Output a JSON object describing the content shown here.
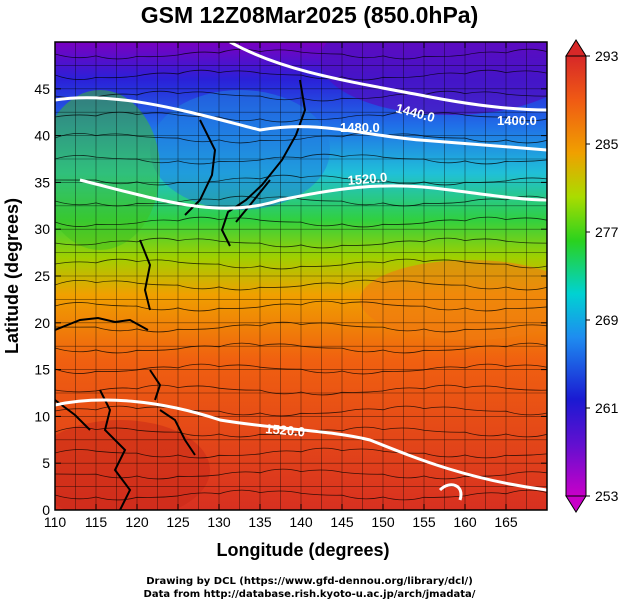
{
  "title": "GSM 12Z08Mar2025 (850.0hPa)",
  "xlabel": "Longitude (degrees)",
  "ylabel": "Latitude  (degrees)",
  "credit_line1": "Drawing by DCL (https://www.gfd-dennou.org/library/dcl/)",
  "credit_line2": "Data from http://database.rish.kyoto-u.ac.jp/arch/jmadata/",
  "chart_data": {
    "type": "heatmap",
    "xlim": [
      110,
      170
    ],
    "ylim": [
      0,
      50
    ],
    "x_ticks": [
      110,
      115,
      120,
      125,
      130,
      135,
      140,
      145,
      150,
      155,
      160,
      165
    ],
    "y_ticks": [
      0,
      5,
      10,
      15,
      20,
      25,
      30,
      35,
      40,
      45
    ],
    "colorbar": {
      "min": 253,
      "max": 293,
      "tick_labels": [
        "293",
        "285",
        "277",
        "269",
        "261",
        "253"
      ]
    },
    "colors": [
      "#c800c8",
      "#1a1ad2",
      "#1e8cf0",
      "#00d2d2",
      "#2ad21e",
      "#aadc00",
      "#f0a000",
      "#f05a14",
      "#d72828"
    ],
    "contour_labels": [
      "1440.0",
      "1400.0",
      "1480.0",
      "1520.0",
      "1520.0"
    ],
    "gridlines": true,
    "overlay": "wind streamlines, geopotential height contours, coastlines"
  }
}
